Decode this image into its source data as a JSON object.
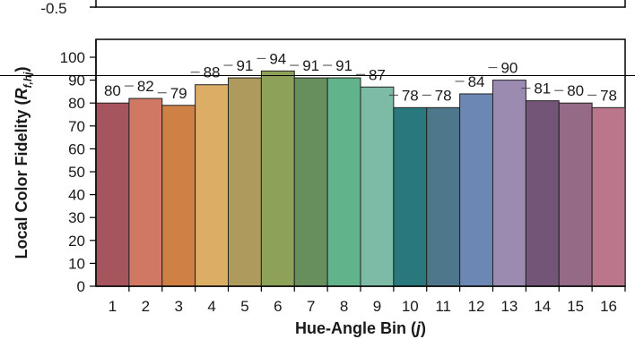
{
  "top_panel": {
    "tick_label": "-0.5"
  },
  "chart_data": {
    "type": "bar",
    "categories": [
      "1",
      "2",
      "3",
      "4",
      "5",
      "6",
      "7",
      "8",
      "9",
      "10",
      "11",
      "12",
      "13",
      "14",
      "15",
      "16"
    ],
    "values": [
      80,
      82,
      79,
      88,
      91,
      94,
      91,
      91,
      87,
      78,
      78,
      84,
      90,
      81,
      80,
      78
    ],
    "data_labels": [
      "80",
      "82",
      "79",
      "88",
      "91",
      "94",
      "91",
      "91",
      "87",
      "78",
      "78",
      "84",
      "90",
      "81",
      "80",
      "78"
    ],
    "bar_colors": [
      "#a6545d",
      "#d07863",
      "#cf8045",
      "#dcad65",
      "#ad9a5c",
      "#8ea158",
      "#678e5d",
      "#60b38b",
      "#7dbba6",
      "#29787d",
      "#4f778c",
      "#6d87b5",
      "#9b8bb0",
      "#735677",
      "#956a87",
      "#bb768c"
    ],
    "y_ticks": [
      "0",
      "10",
      "20",
      "30",
      "40",
      "50",
      "60",
      "70",
      "80",
      "90",
      "100"
    ],
    "ylim": [
      0,
      100
    ],
    "xlabel": {
      "prefix": "Hue-Angle Bin (",
      "var": "j",
      "suffix": ")"
    },
    "ylabel": {
      "prefix": "Local Color Fidelity (",
      "var": "R",
      "sub": "f,hj",
      "suffix": ")"
    },
    "reference_line": 92,
    "grid": false,
    "legend": "none"
  }
}
